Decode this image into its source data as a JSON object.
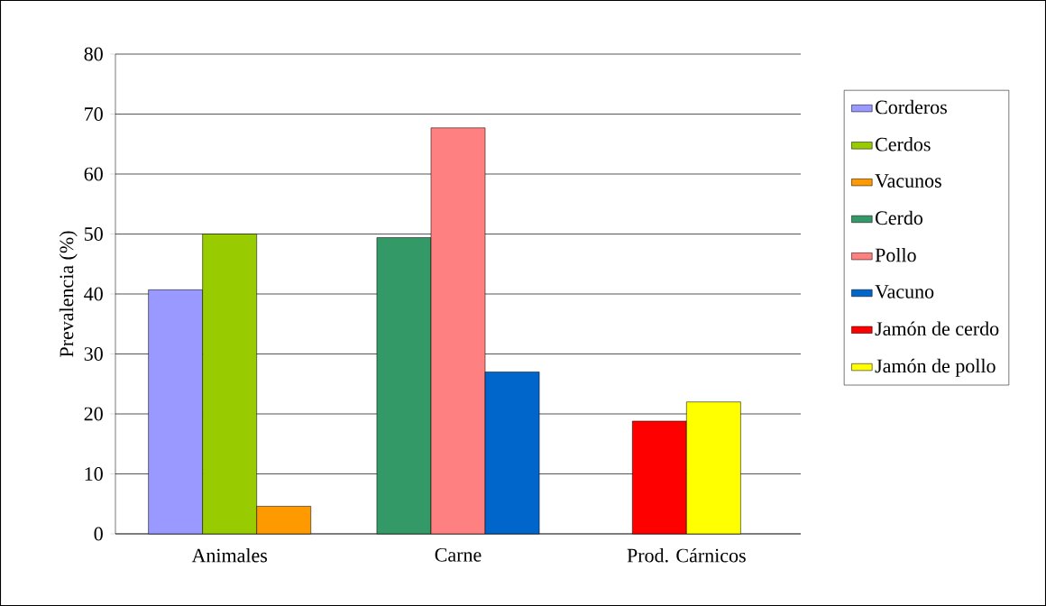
{
  "chart_data": {
    "type": "bar",
    "ylabel": "Prevalencia (%)",
    "categories": [
      "Animales",
      "Carne",
      "Prod. Cárnicos"
    ],
    "series": [
      {
        "name": "Corderos",
        "color": "#9999ff",
        "values": [
          40.7,
          null,
          null
        ]
      },
      {
        "name": "Cerdos",
        "color": "#99cc00",
        "values": [
          50,
          null,
          null
        ]
      },
      {
        "name": "Vacunos",
        "color": "#ff9900",
        "values": [
          4.6,
          null,
          null
        ]
      },
      {
        "name": "Cerdo",
        "color": "#339966",
        "values": [
          null,
          49.4,
          null
        ]
      },
      {
        "name": "Pollo",
        "color": "#ff8080",
        "values": [
          null,
          67.7,
          null
        ]
      },
      {
        "name": "Vacuno",
        "color": "#0066cc",
        "values": [
          null,
          27,
          null
        ]
      },
      {
        "name": "Jamón de cerdo",
        "color": "#ff0000",
        "values": [
          null,
          null,
          18.8
        ]
      },
      {
        "name": "Jamón de pollo",
        "color": "#ffff00",
        "values": [
          null,
          null,
          22
        ]
      }
    ],
    "ylim": [
      0,
      80
    ],
    "yticks": [
      0,
      10,
      20,
      30,
      40,
      50,
      60,
      70,
      80
    ],
    "grid": "y",
    "legend": "right"
  }
}
